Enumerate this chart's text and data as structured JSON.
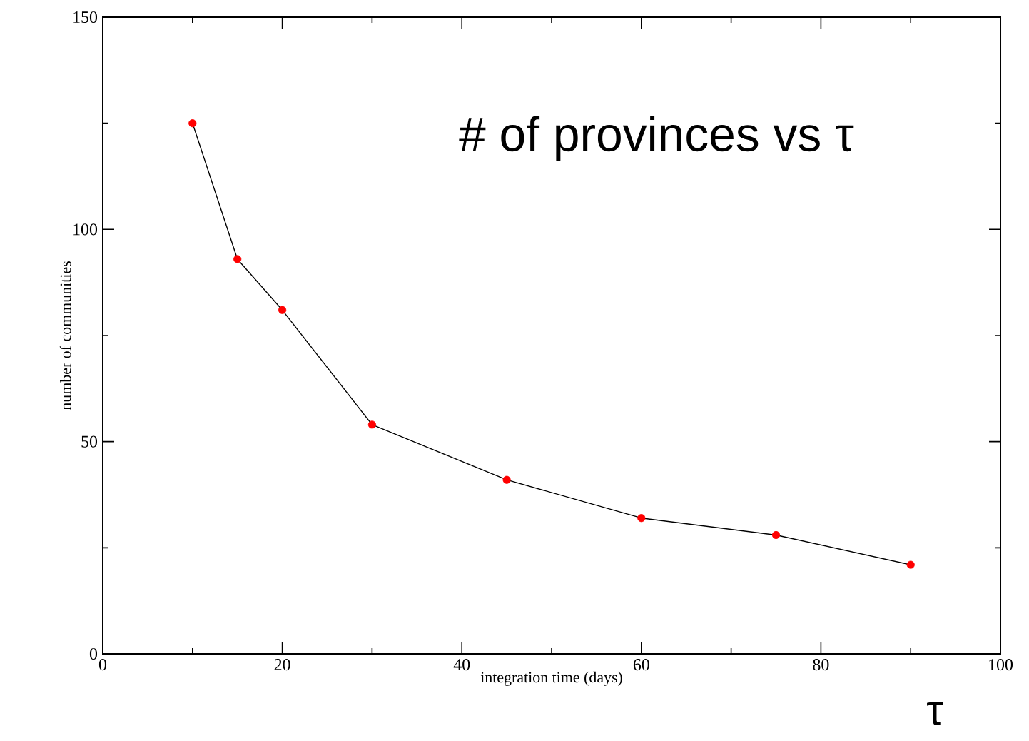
{
  "chart_data": {
    "type": "line",
    "xlabel": "integration time (days)",
    "ylabel": "number of communities",
    "annotations": [
      "# of provinces vs τ",
      "τ"
    ],
    "x": [
      10,
      15,
      20,
      30,
      45,
      60,
      75,
      90
    ],
    "series": [
      {
        "color": "#000000",
        "colors": [
          "#ff0000",
          "#ff0000",
          "#ff0000",
          "#ff0000",
          "#ff0000",
          "#ff0000",
          "#ff0000",
          "#ff0000"
        ],
        "values": [
          125,
          93,
          81,
          54,
          41,
          32,
          28,
          21
        ]
      }
    ],
    "xlim": [
      0,
      100
    ],
    "ylim": [
      0,
      150
    ],
    "xticks": [
      0,
      20,
      40,
      60,
      80,
      100
    ],
    "yticks": [
      0,
      50,
      100,
      150
    ],
    "marker": "circle",
    "line_style": "solid",
    "grid": false
  }
}
